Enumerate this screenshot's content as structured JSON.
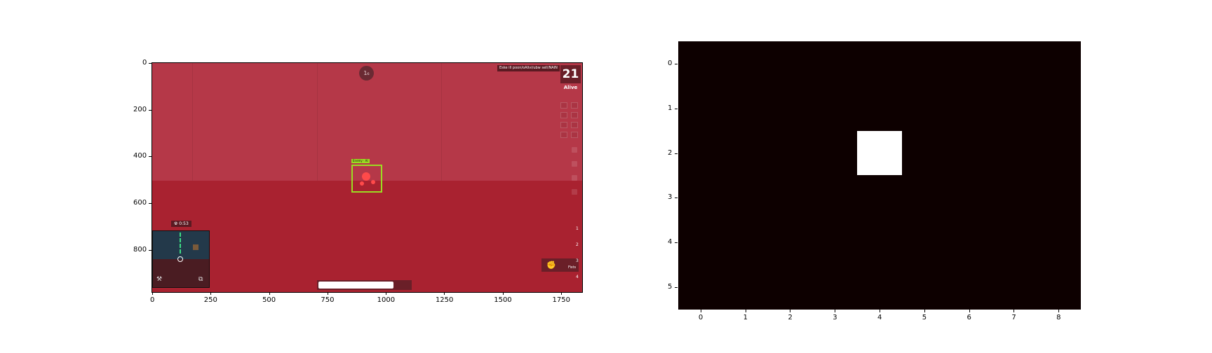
{
  "left_panel": {
    "x_ticks": [
      "0",
      "250",
      "500",
      "750",
      "1000",
      "1250",
      "1500",
      "1750"
    ],
    "y_ticks": [
      "0",
      "200",
      "400",
      "600",
      "800"
    ],
    "hud": {
      "timer_circle": "1₆",
      "killfeed": "Eske ill poon/oAlivi/ubw sell/NAIN",
      "alive_count": "21",
      "alive_label": "Alive",
      "target_label": "Enemy · AI",
      "weapon_slots": [
        "1",
        "2",
        "3",
        "4"
      ],
      "weapon_name": "Fists",
      "weapon_icon": "fist-icon",
      "progress_percent": 70,
      "zone_badge": "☢ 0:53"
    },
    "colors": {
      "sky": "#b53848",
      "ground": "#a92230",
      "target": "#9bdc22",
      "hud_panel": "#6a1f28"
    }
  },
  "chart_data": {
    "type": "heatmap",
    "rows": 6,
    "cols": 9,
    "x_ticks": [
      "0",
      "1",
      "2",
      "3",
      "4",
      "5",
      "6",
      "7",
      "8"
    ],
    "y_ticks": [
      "0",
      "1",
      "2",
      "3",
      "4",
      "5"
    ],
    "values": [
      [
        0,
        0,
        0,
        0,
        0,
        0,
        0,
        0,
        0
      ],
      [
        0,
        0,
        0,
        0,
        0,
        0,
        0,
        0,
        0
      ],
      [
        0,
        0,
        0,
        0,
        1,
        0,
        0,
        0,
        0
      ],
      [
        0,
        0,
        0,
        0,
        0,
        0,
        0,
        0,
        0
      ],
      [
        0,
        0,
        0,
        0,
        0,
        0,
        0,
        0,
        0
      ],
      [
        0,
        0,
        0,
        0,
        0,
        0,
        0,
        0,
        0
      ]
    ],
    "colormap": {
      "low": "#0d0000",
      "high": "#ffffff"
    },
    "xlim": [
      -0.5,
      8.5
    ],
    "ylim": [
      5.5,
      -0.5
    ]
  }
}
